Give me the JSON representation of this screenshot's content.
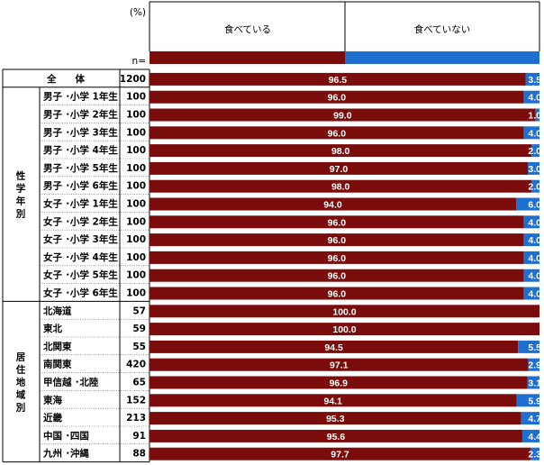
{
  "chart_data": {
    "type": "bar",
    "stacked": true,
    "orientation": "horizontal",
    "unit_label": "(%)",
    "n_label": "n=",
    "series": [
      {
        "name": "食べている",
        "color": "#7b0c0c"
      },
      {
        "name": "食べていない",
        "color": "#1f6fd1"
      }
    ],
    "total_row": {
      "label": "全　　体",
      "n": "1200",
      "values": [
        96.5,
        3.5
      ]
    },
    "groups": [
      {
        "label": "性学年別",
        "rows": [
          {
            "label": "男子 ･小学 1年生",
            "n": "100",
            "values": [
              96.0,
              4.0
            ]
          },
          {
            "label": "男子 ･小学 2年生",
            "n": "100",
            "values": [
              99.0,
              1.0
            ]
          },
          {
            "label": "男子 ･小学 3年生",
            "n": "100",
            "values": [
              96.0,
              4.0
            ]
          },
          {
            "label": "男子 ･小学 4年生",
            "n": "100",
            "values": [
              98.0,
              2.0
            ]
          },
          {
            "label": "男子 ･小学 5年生",
            "n": "100",
            "values": [
              97.0,
              3.0
            ]
          },
          {
            "label": "男子 ･小学 6年生",
            "n": "100",
            "values": [
              98.0,
              2.0
            ]
          },
          {
            "label": "女子 ･小学 1年生",
            "n": "100",
            "values": [
              94.0,
              6.0
            ]
          },
          {
            "label": "女子 ･小学 2年生",
            "n": "100",
            "values": [
              96.0,
              4.0
            ]
          },
          {
            "label": "女子 ･小学 3年生",
            "n": "100",
            "values": [
              96.0,
              4.0
            ]
          },
          {
            "label": "女子 ･小学 4年生",
            "n": "100",
            "values": [
              96.0,
              4.0
            ]
          },
          {
            "label": "女子 ･小学 5年生",
            "n": "100",
            "values": [
              96.0,
              4.0
            ]
          },
          {
            "label": "女子 ･小学 6年生",
            "n": "100",
            "values": [
              96.0,
              4.0
            ]
          }
        ]
      },
      {
        "label": "居住地域別",
        "rows": [
          {
            "label": "北海道",
            "n": "57",
            "values": [
              100.0,
              0.0
            ]
          },
          {
            "label": "東北",
            "n": "59",
            "values": [
              100.0,
              0.0
            ]
          },
          {
            "label": "北関東",
            "n": "55",
            "values": [
              94.5,
              5.5
            ]
          },
          {
            "label": "南関東",
            "n": "420",
            "values": [
              97.1,
              2.9
            ]
          },
          {
            "label": "甲信越 ･北陸",
            "n": "65",
            "values": [
              96.9,
              3.1
            ]
          },
          {
            "label": "東海",
            "n": "152",
            "values": [
              94.1,
              5.9
            ]
          },
          {
            "label": "近畿",
            "n": "213",
            "values": [
              95.3,
              4.7
            ]
          },
          {
            "label": "中国 ･四国",
            "n": "91",
            "values": [
              95.6,
              4.4
            ]
          },
          {
            "label": "九州 ･沖縄",
            "n": "88",
            "values": [
              97.7,
              2.3
            ]
          }
        ]
      }
    ],
    "xlim": [
      0,
      100
    ]
  }
}
